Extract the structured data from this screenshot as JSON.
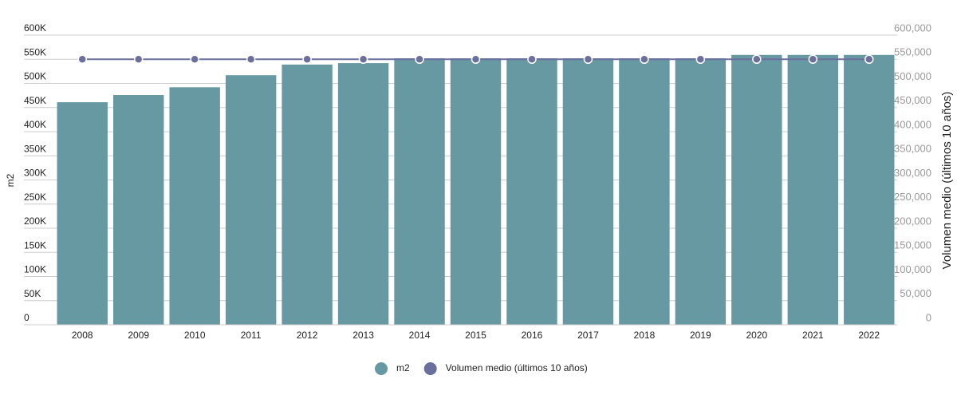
{
  "chart_data": {
    "type": "bar",
    "y_label": "m2",
    "y2_label": "Volumen medio (últimos 10 años)",
    "categories": [
      "2008",
      "2009",
      "2010",
      "2011",
      "2012",
      "2013",
      "2014",
      "2015",
      "2016",
      "2017",
      "2018",
      "2019",
      "2020",
      "2021",
      "2022"
    ],
    "series": [
      {
        "name": "m2",
        "color": "#6699a1",
        "type": "bar",
        "values": [
          461000,
          476000,
          492000,
          517000,
          539000,
          542000,
          552000,
          552000,
          552000,
          552000,
          552000,
          552000,
          559000,
          559000,
          559000
        ]
      },
      {
        "name": "Volumen medio (últimos 10 años)",
        "color": "#6b6f9c",
        "type": "line",
        "axis": "y2",
        "values": [
          550000,
          550000,
          550000,
          550000,
          550000,
          550000,
          550000,
          550000,
          550000,
          550000,
          550000,
          550000,
          550000,
          550000,
          550000
        ]
      }
    ],
    "ylim": [
      0,
      600000
    ],
    "yticks": [
      0,
      {
        "value": 50000,
        "label": "50K"
      },
      {
        "value": 100000,
        "label": "100K"
      },
      {
        "value": 150000,
        "label": "150K"
      },
      {
        "value": 200000,
        "label": "200K"
      },
      {
        "value": 250000,
        "label": "250K"
      },
      {
        "value": 300000,
        "label": "300K"
      },
      {
        "value": 350000,
        "label": "350K"
      },
      {
        "value": 400000,
        "label": "400K"
      },
      {
        "value": 450000,
        "label": "450K"
      },
      {
        "value": 500000,
        "label": "500K"
      },
      {
        "value": 550000,
        "label": "550K"
      },
      {
        "value": 600000,
        "label": "600K"
      }
    ],
    "y2lim": [
      0,
      600000
    ],
    "y2ticks": [
      0,
      {
        "value": 50000,
        "label": "50,000"
      },
      {
        "value": 100000,
        "label": "100,000"
      },
      {
        "value": 150000,
        "label": "150,000"
      },
      {
        "value": 200000,
        "label": "200,000"
      },
      {
        "value": 250000,
        "label": "250,000"
      },
      {
        "value": 300000,
        "label": "300,000"
      },
      {
        "value": 350000,
        "label": "350,000"
      },
      {
        "value": 400000,
        "label": "400,000"
      },
      {
        "value": 450000,
        "label": "450,000"
      },
      {
        "value": 500000,
        "label": "500,000"
      },
      {
        "value": 550000,
        "label": "550,000"
      },
      {
        "value": 600000,
        "label": "600,000"
      }
    ],
    "grid": true,
    "legend": "bottom"
  }
}
